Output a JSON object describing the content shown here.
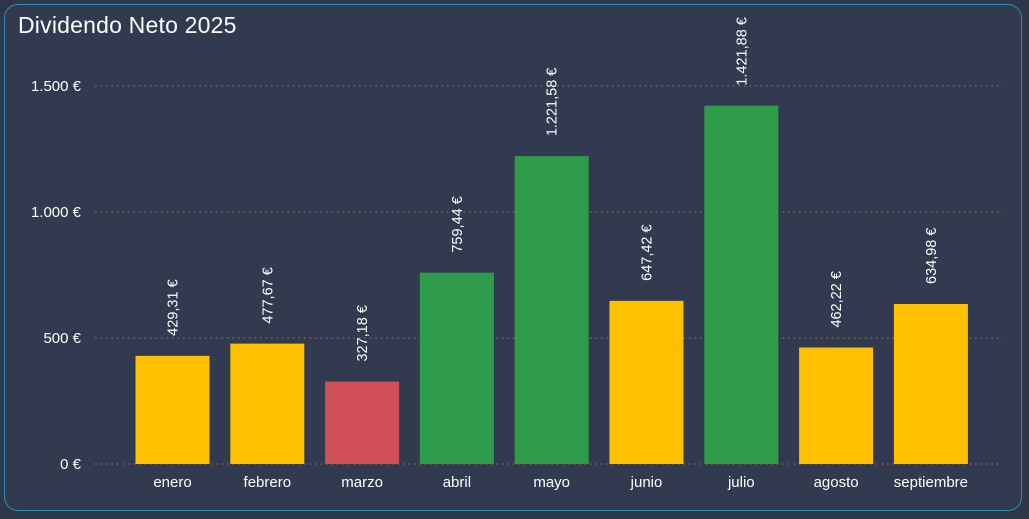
{
  "chart_data": {
    "type": "bar",
    "title": "Dividendo Neto 2025",
    "xlabel": "",
    "ylabel": "",
    "ylim": [
      0,
      1500
    ],
    "yticks": [
      0,
      500,
      1000,
      1500
    ],
    "ytick_labels": [
      "0 €",
      "500 €",
      "1.000 €",
      "1.500 €"
    ],
    "grid": true,
    "categories": [
      "enero",
      "febrero",
      "marzo",
      "abril",
      "mayo",
      "junio",
      "julio",
      "agosto",
      "septiembre"
    ],
    "values": [
      429.31,
      477.67,
      327.18,
      759.44,
      1221.58,
      647.42,
      1421.88,
      462.22,
      634.98
    ],
    "data_labels": [
      "429,31 €",
      "477,67 €",
      "327,18 €",
      "759,44 €",
      "1.221,58 €",
      "647,42 €",
      "1.421,88 €",
      "462,22 €",
      "634,98 €"
    ],
    "bar_colors": [
      "#ffc000",
      "#ffc000",
      "#d14f58",
      "#2e9c4a",
      "#2e9c4a",
      "#ffc000",
      "#2e9c4a",
      "#ffc000",
      "#ffc000"
    ]
  }
}
